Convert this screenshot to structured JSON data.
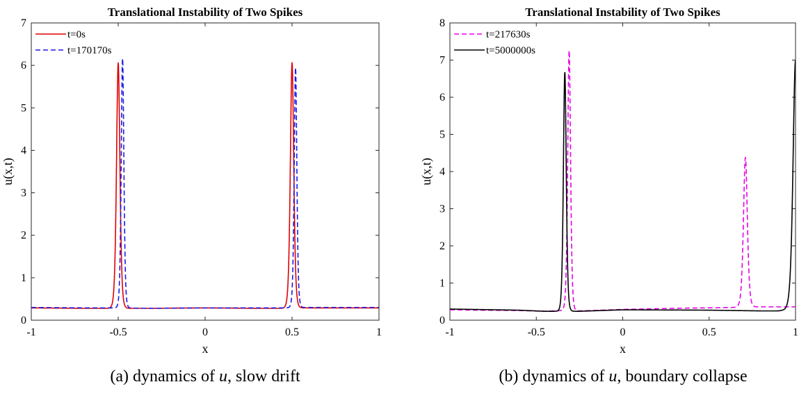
{
  "chart_data": [
    {
      "type": "line",
      "title": "Translational Instability of Two Spikes",
      "caption": "(a) dynamics of u, slow drift",
      "caption_parts": {
        "pre": "(a) dynamics of ",
        "var": "u",
        "post": ", slow drift"
      },
      "xlabel": "x",
      "ylabel": "u(x,t)",
      "xlim": [
        -1,
        1
      ],
      "ylim": [
        0,
        7
      ],
      "xticks": [
        -1,
        -0.5,
        0,
        0.5,
        1
      ],
      "xtick_labels": [
        "-1",
        "-0.5",
        "0",
        "0.5",
        "1"
      ],
      "yticks": [
        0,
        1,
        2,
        3,
        4,
        5,
        6,
        7
      ],
      "ytick_labels": [
        "0",
        "1",
        "2",
        "3",
        "4",
        "5",
        "6",
        "7"
      ],
      "grid": false,
      "legend_position": "top-left",
      "series": [
        {
          "name": "t=0s",
          "color": "#e00000",
          "dash": "solid",
          "base": [
            [
              -1,
              0.29
            ],
            [
              -0.7,
              0.28
            ],
            [
              -0.55,
              0.28
            ],
            [
              -0.3,
              0.28
            ],
            [
              0,
              0.29
            ],
            [
              0.3,
              0.28
            ],
            [
              0.45,
              0.28
            ],
            [
              0.55,
              0.29
            ],
            [
              0.7,
              0.29
            ],
            [
              1,
              0.29
            ]
          ],
          "spikes": [
            {
              "center": -0.5,
              "amp": 5.78,
              "width": 0.013
            },
            {
              "center": 0.5,
              "amp": 5.78,
              "width": 0.013
            }
          ]
        },
        {
          "name": "t=170170s",
          "color": "#1a1ae6",
          "dash": "dashed",
          "base": [
            [
              -1,
              0.3
            ],
            [
              -0.7,
              0.29
            ],
            [
              -0.55,
              0.29
            ],
            [
              -0.3,
              0.28
            ],
            [
              0,
              0.29
            ],
            [
              0.3,
              0.29
            ],
            [
              0.45,
              0.29
            ],
            [
              0.55,
              0.3
            ],
            [
              0.7,
              0.3
            ],
            [
              1,
              0.3
            ]
          ],
          "spikes": [
            {
              "center": -0.475,
              "amp": 5.9,
              "width": 0.01
            },
            {
              "center": 0.52,
              "amp": 5.65,
              "width": 0.01
            }
          ]
        }
      ]
    },
    {
      "type": "line",
      "title": "Translational Instability of Two Spikes",
      "caption": "(b) dynamics of u, boundary collapse",
      "caption_parts": {
        "pre": "(b) dynamics of ",
        "var": "u",
        "post": ", boundary collapse"
      },
      "xlabel": "x",
      "ylabel": "u(x,t)",
      "xlim": [
        -1,
        1
      ],
      "ylim": [
        0,
        8
      ],
      "xticks": [
        -1,
        -0.5,
        0,
        0.5,
        1
      ],
      "xtick_labels": [
        "-1",
        "-0.5",
        "0",
        "0.5",
        "1"
      ],
      "yticks": [
        0,
        1,
        2,
        3,
        4,
        5,
        6,
        7,
        8
      ],
      "ytick_labels": [
        "0",
        "1",
        "2",
        "3",
        "4",
        "5",
        "6",
        "7",
        "8"
      ],
      "grid": false,
      "legend_position": "top-left",
      "series": [
        {
          "name": "t=217630s",
          "color": "#e600e6",
          "dash": "dashed",
          "base": [
            [
              -1,
              0.28
            ],
            [
              -0.6,
              0.26
            ],
            [
              -0.45,
              0.24
            ],
            [
              -0.35,
              0.26
            ],
            [
              -0.25,
              0.25
            ],
            [
              0,
              0.29
            ],
            [
              0.3,
              0.32
            ],
            [
              0.6,
              0.34
            ],
            [
              0.8,
              0.36
            ],
            [
              1,
              0.36
            ]
          ],
          "spikes": [
            {
              "center": -0.31,
              "amp": 7.0,
              "width": 0.011
            },
            {
              "center": 0.71,
              "amp": 4.03,
              "width": 0.015
            }
          ]
        },
        {
          "name": "t=5000000s",
          "color": "#000000",
          "dash": "solid",
          "base": [
            [
              -1,
              0.3
            ],
            [
              -0.6,
              0.27
            ],
            [
              -0.45,
              0.24
            ],
            [
              -0.25,
              0.24
            ],
            [
              0,
              0.28
            ],
            [
              0.5,
              0.27
            ],
            [
              0.8,
              0.25
            ],
            [
              0.9,
              0.25
            ],
            [
              1,
              0.3
            ]
          ],
          "spikes": [
            {
              "center": -0.335,
              "amp": 6.45,
              "width": 0.011
            },
            {
              "center": 1.0,
              "amp": 6.7,
              "width": 0.019
            }
          ]
        }
      ]
    }
  ]
}
